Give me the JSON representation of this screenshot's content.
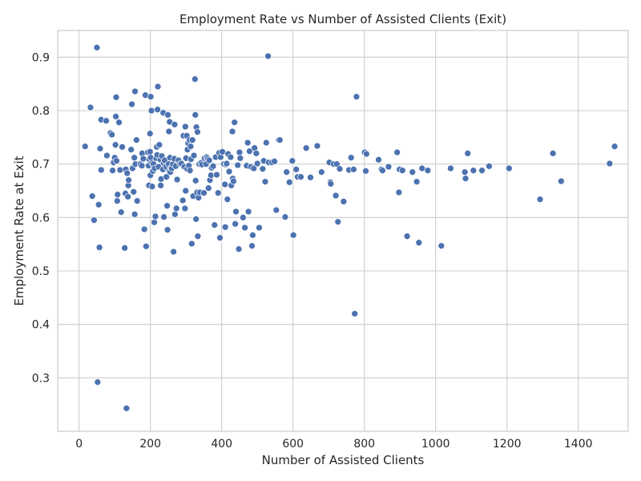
{
  "chart_data": {
    "type": "scatter",
    "title": "Employment Rate vs Number of Assisted Clients (Exit)",
    "xlabel": "Number of Assisted Clients",
    "ylabel": "Employment Rate at Exit",
    "xlim": [
      -60,
      1540
    ],
    "ylim": [
      0.2,
      0.95
    ],
    "xticks": [
      0,
      200,
      400,
      600,
      800,
      1000,
      1200,
      1400
    ],
    "yticks": [
      0.3,
      0.4,
      0.5,
      0.6,
      0.7,
      0.8,
      0.9
    ],
    "xtick_labels": [
      "0",
      "200",
      "400",
      "600",
      "800",
      "1000",
      "1200",
      "1400"
    ],
    "ytick_labels": [
      "0.3",
      "0.4",
      "0.5",
      "0.6",
      "0.7",
      "0.8",
      "0.9"
    ],
    "grid": true,
    "marker_color": "#4c72b0",
    "points": [
      [
        17,
        0.733
      ],
      [
        32,
        0.806
      ],
      [
        37,
        0.64
      ],
      [
        42,
        0.595
      ],
      [
        50,
        0.918
      ],
      [
        52,
        0.292
      ],
      [
        55,
        0.624
      ],
      [
        57,
        0.544
      ],
      [
        59,
        0.729
      ],
      [
        62,
        0.689
      ],
      [
        62,
        0.783
      ],
      [
        76,
        0.781
      ],
      [
        78,
        0.716
      ],
      [
        88,
        0.758
      ],
      [
        92,
        0.755
      ],
      [
        94,
        0.688
      ],
      [
        97,
        0.703
      ],
      [
        100,
        0.712
      ],
      [
        102,
        0.736
      ],
      [
        103,
        0.789
      ],
      [
        104,
        0.825
      ],
      [
        105,
        0.706
      ],
      [
        107,
        0.631
      ],
      [
        108,
        0.643
      ],
      [
        112,
        0.778
      ],
      [
        115,
        0.689
      ],
      [
        118,
        0.61
      ],
      [
        121,
        0.732
      ],
      [
        128,
        0.543
      ],
      [
        130,
        0.645
      ],
      [
        131,
        0.69
      ],
      [
        133,
        0.243
      ],
      [
        135,
        0.683
      ],
      [
        137,
        0.639
      ],
      [
        138,
        0.66
      ],
      [
        139,
        0.67
      ],
      [
        146,
        0.727
      ],
      [
        148,
        0.812
      ],
      [
        150,
        0.692
      ],
      [
        153,
        0.648
      ],
      [
        155,
        0.712
      ],
      [
        156,
        0.606
      ],
      [
        157,
        0.836
      ],
      [
        158,
        0.7
      ],
      [
        161,
        0.745
      ],
      [
        163,
        0.631
      ],
      [
        172,
        0.7
      ],
      [
        176,
        0.697
      ],
      [
        177,
        0.72
      ],
      [
        180,
        0.71
      ],
      [
        183,
        0.578
      ],
      [
        186,
        0.829
      ],
      [
        188,
        0.546
      ],
      [
        193,
        0.722
      ],
      [
        195,
        0.697
      ],
      [
        196,
        0.66
      ],
      [
        197,
        0.709
      ],
      [
        199,
        0.757
      ],
      [
        199,
        0.723
      ],
      [
        200,
        0.679
      ],
      [
        201,
        0.826
      ],
      [
        201,
        0.712
      ],
      [
        203,
        0.8
      ],
      [
        205,
        0.702
      ],
      [
        205,
        0.658
      ],
      [
        207,
        0.687
      ],
      [
        209,
        0.7
      ],
      [
        211,
        0.591
      ],
      [
        212,
        0.692
      ],
      [
        214,
        0.602
      ],
      [
        216,
        0.711
      ],
      [
        218,
        0.732
      ],
      [
        219,
        0.717
      ],
      [
        220,
        0.802
      ],
      [
        221,
        0.845
      ],
      [
        223,
        0.695
      ],
      [
        225,
        0.736
      ],
      [
        228,
        0.708
      ],
      [
        229,
        0.66
      ],
      [
        230,
        0.672
      ],
      [
        232,
        0.715
      ],
      [
        235,
        0.69
      ],
      [
        236,
        0.796
      ],
      [
        237,
        0.702
      ],
      [
        238,
        0.601
      ],
      [
        240,
        0.707
      ],
      [
        244,
        0.695
      ],
      [
        245,
        0.676
      ],
      [
        247,
        0.622
      ],
      [
        248,
        0.577
      ],
      [
        249,
        0.792
      ],
      [
        251,
        0.7
      ],
      [
        252,
        0.761
      ],
      [
        253,
        0.687
      ],
      [
        254,
        0.779
      ],
      [
        255,
        0.712
      ],
      [
        256,
        0.685
      ],
      [
        258,
        0.693
      ],
      [
        260,
        0.692
      ],
      [
        263,
        0.7
      ],
      [
        265,
        0.536
      ],
      [
        267,
        0.71
      ],
      [
        268,
        0.774
      ],
      [
        269,
        0.606
      ],
      [
        271,
        0.696
      ],
      [
        273,
        0.617
      ],
      [
        275,
        0.671
      ],
      [
        279,
        0.707
      ],
      [
        283,
        0.7
      ],
      [
        287,
        0.701
      ],
      [
        291,
        0.632
      ],
      [
        293,
        0.753
      ],
      [
        295,
        0.695
      ],
      [
        297,
        0.617
      ],
      [
        298,
        0.77
      ],
      [
        299,
        0.65
      ],
      [
        300,
        0.711
      ],
      [
        302,
        0.753
      ],
      [
        303,
        0.691
      ],
      [
        304,
        0.727
      ],
      [
        306,
        0.739
      ],
      [
        308,
        0.697
      ],
      [
        310,
        0.745
      ],
      [
        311,
        0.688
      ],
      [
        313,
        0.733
      ],
      [
        314,
        0.709
      ],
      [
        316,
        0.551
      ],
      [
        318,
        0.745
      ],
      [
        320,
        0.64
      ],
      [
        322,
        0.716
      ],
      [
        325,
        0.859
      ],
      [
        326,
        0.792
      ],
      [
        327,
        0.669
      ],
      [
        328,
        0.597
      ],
      [
        329,
        0.769
      ],
      [
        331,
        0.647
      ],
      [
        332,
        0.76
      ],
      [
        333,
        0.565
      ],
      [
        335,
        0.637
      ],
      [
        337,
        0.7
      ],
      [
        339,
        0.647
      ],
      [
        342,
        0.702
      ],
      [
        345,
        0.699
      ],
      [
        350,
        0.646
      ],
      [
        352,
        0.711
      ],
      [
        356,
        0.7
      ],
      [
        358,
        0.713
      ],
      [
        361,
        0.71
      ],
      [
        363,
        0.655
      ],
      [
        365,
        0.707
      ],
      [
        367,
        0.67
      ],
      [
        370,
        0.679
      ],
      [
        372,
        0.693
      ],
      [
        376,
        0.696
      ],
      [
        380,
        0.586
      ],
      [
        383,
        0.713
      ],
      [
        386,
        0.68
      ],
      [
        390,
        0.646
      ],
      [
        393,
        0.721
      ],
      [
        395,
        0.562
      ],
      [
        397,
        0.713
      ],
      [
        402,
        0.723
      ],
      [
        406,
        0.7
      ],
      [
        409,
        0.662
      ],
      [
        410,
        0.582
      ],
      [
        412,
        0.699
      ],
      [
        414,
        0.701
      ],
      [
        416,
        0.634
      ],
      [
        418,
        0.719
      ],
      [
        421,
        0.686
      ],
      [
        425,
        0.713
      ],
      [
        427,
        0.66
      ],
      [
        430,
        0.761
      ],
      [
        431,
        0.673
      ],
      [
        433,
        0.668
      ],
      [
        436,
        0.778
      ],
      [
        438,
        0.588
      ],
      [
        440,
        0.611
      ],
      [
        445,
        0.698
      ],
      [
        448,
        0.541
      ],
      [
        450,
        0.722
      ],
      [
        452,
        0.711
      ],
      [
        460,
        0.6
      ],
      [
        465,
        0.581
      ],
      [
        470,
        0.697
      ],
      [
        473,
        0.74
      ],
      [
        475,
        0.611
      ],
      [
        478,
        0.724
      ],
      [
        482,
        0.695
      ],
      [
        485,
        0.547
      ],
      [
        487,
        0.567
      ],
      [
        490,
        0.692
      ],
      [
        492,
        0.73
      ],
      [
        497,
        0.72
      ],
      [
        500,
        0.701
      ],
      [
        505,
        0.581
      ],
      [
        515,
        0.691
      ],
      [
        518,
        0.706
      ],
      [
        522,
        0.667
      ],
      [
        525,
        0.74
      ],
      [
        530,
        0.902
      ],
      [
        532,
        0.703
      ],
      [
        541,
        0.703
      ],
      [
        548,
        0.705
      ],
      [
        553,
        0.614
      ],
      [
        560,
        0.745
      ],
      [
        563,
        0.745
      ],
      [
        578,
        0.601
      ],
      [
        582,
        0.685
      ],
      [
        590,
        0.666
      ],
      [
        598,
        0.706
      ],
      [
        601,
        0.567
      ],
      [
        609,
        0.69
      ],
      [
        613,
        0.676
      ],
      [
        622,
        0.676
      ],
      [
        637,
        0.73
      ],
      [
        649,
        0.675
      ],
      [
        668,
        0.734
      ],
      [
        680,
        0.685
      ],
      [
        702,
        0.703
      ],
      [
        705,
        0.666
      ],
      [
        706,
        0.663
      ],
      [
        714,
        0.7
      ],
      [
        720,
        0.641
      ],
      [
        723,
        0.7
      ],
      [
        726,
        0.592
      ],
      [
        731,
        0.691
      ],
      [
        742,
        0.63
      ],
      [
        757,
        0.689
      ],
      [
        763,
        0.712
      ],
      [
        770,
        0.69
      ],
      [
        773,
        0.42
      ],
      [
        778,
        0.826
      ],
      [
        801,
        0.722
      ],
      [
        806,
        0.719
      ],
      [
        804,
        0.687
      ],
      [
        840,
        0.708
      ],
      [
        848,
        0.69
      ],
      [
        851,
        0.688
      ],
      [
        868,
        0.695
      ],
      [
        892,
        0.722
      ],
      [
        897,
        0.647
      ],
      [
        899,
        0.69
      ],
      [
        907,
        0.688
      ],
      [
        920,
        0.565
      ],
      [
        935,
        0.685
      ],
      [
        947,
        0.667
      ],
      [
        953,
        0.553
      ],
      [
        962,
        0.692
      ],
      [
        978,
        0.688
      ],
      [
        1016,
        0.547
      ],
      [
        1042,
        0.692
      ],
      [
        1082,
        0.685
      ],
      [
        1084,
        0.673
      ],
      [
        1090,
        0.72
      ],
      [
        1106,
        0.688
      ],
      [
        1130,
        0.688
      ],
      [
        1150,
        0.696
      ],
      [
        1206,
        0.692
      ],
      [
        1293,
        0.634
      ],
      [
        1329,
        0.72
      ],
      [
        1352,
        0.668
      ],
      [
        1488,
        0.701
      ],
      [
        1502,
        0.733
      ]
    ]
  }
}
